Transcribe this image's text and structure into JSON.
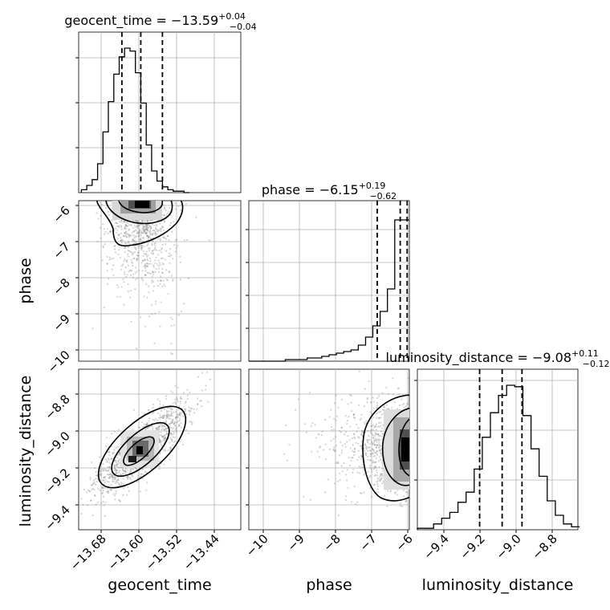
{
  "chart_data": [
    {
      "type": "histogram",
      "panel": "geocent_time-1d",
      "title_name": "geocent_time",
      "title_median": "−13.59",
      "title_upper": "+0.04",
      "title_lower": "−0.04",
      "xlim": [
        -13.71,
        -13.41
      ],
      "bin_edges_start": -13.705,
      "bin_width": 0.01,
      "counts": [
        0.02,
        0.05,
        0.09,
        0.2,
        0.42,
        0.63,
        0.82,
        0.94,
        1.0,
        0.98,
        0.83,
        0.62,
        0.33,
        0.15,
        0.08,
        0.04,
        0.02,
        0.01,
        0.01,
        0.0
      ],
      "quantiles": [
        -13.63,
        -13.595,
        -13.555
      ]
    },
    {
      "type": "scatter",
      "panel": "phase-vs-geocent_time",
      "xlim": [
        -13.71,
        -13.41
      ],
      "ylim": [
        -10.3,
        -5.9
      ],
      "ylabel": "phase",
      "yticks": [
        "−6",
        "−7",
        "−8",
        "−9",
        "−10"
      ]
    },
    {
      "type": "histogram",
      "panel": "phase-1d",
      "title_name": "phase",
      "title_median": "−6.15",
      "title_upper": "+0.19",
      "title_lower": "−0.62",
      "xlim": [
        -10.3,
        -5.9
      ],
      "bin_edges_start": -10.3,
      "bin_width": 0.2,
      "counts": [
        0,
        0,
        0,
        0,
        0,
        0.01,
        0.01,
        0.01,
        0.02,
        0.02,
        0.03,
        0.04,
        0.05,
        0.06,
        0.07,
        0.1,
        0.15,
        0.22,
        0.31,
        0.45,
        0.88,
        0.88
      ],
      "quantiles": [
        -6.78,
        -6.15,
        -5.96
      ]
    },
    {
      "type": "scatter",
      "panel": "luminosity_distance-vs-geocent_time",
      "xlim": [
        -13.71,
        -13.41
      ],
      "ylim": [
        -9.55,
        -8.66
      ],
      "xlabel": "geocent_time",
      "ylabel": "luminosity_distance",
      "xticks": [
        "−13.68",
        "−13.60",
        "−13.52",
        "−13.44"
      ],
      "yticks": [
        "−8.8",
        "−9.0",
        "−9.2",
        "−9.4"
      ]
    },
    {
      "type": "scatter",
      "panel": "luminosity_distance-vs-phase",
      "xlim": [
        -10.3,
        -5.9
      ],
      "ylim": [
        -9.55,
        -8.66
      ],
      "xlabel": "phase",
      "xticks": [
        "−10",
        "−9",
        "−8",
        "−7",
        "−6"
      ]
    },
    {
      "type": "histogram",
      "panel": "luminosity_distance-1d",
      "title_name": "luminosity_distance",
      "title_median": "−9.08",
      "title_upper": "+0.11",
      "title_lower": "−0.12",
      "xlim": [
        -9.55,
        -8.66
      ],
      "bin_edges_start": -9.55,
      "bin_width": 0.045,
      "counts": [
        0.01,
        0.01,
        0.04,
        0.08,
        0.12,
        0.19,
        0.26,
        0.42,
        0.64,
        0.81,
        0.93,
        1.0,
        0.99,
        0.79,
        0.56,
        0.37,
        0.2,
        0.1,
        0.04,
        0.02
      ],
      "quantiles": [
        -9.205,
        -9.08,
        -8.97
      ],
      "xlabel": "luminosity_distance",
      "xticks": [
        "−9.4",
        "−9.2",
        "−9.0",
        "−8.8"
      ]
    }
  ]
}
